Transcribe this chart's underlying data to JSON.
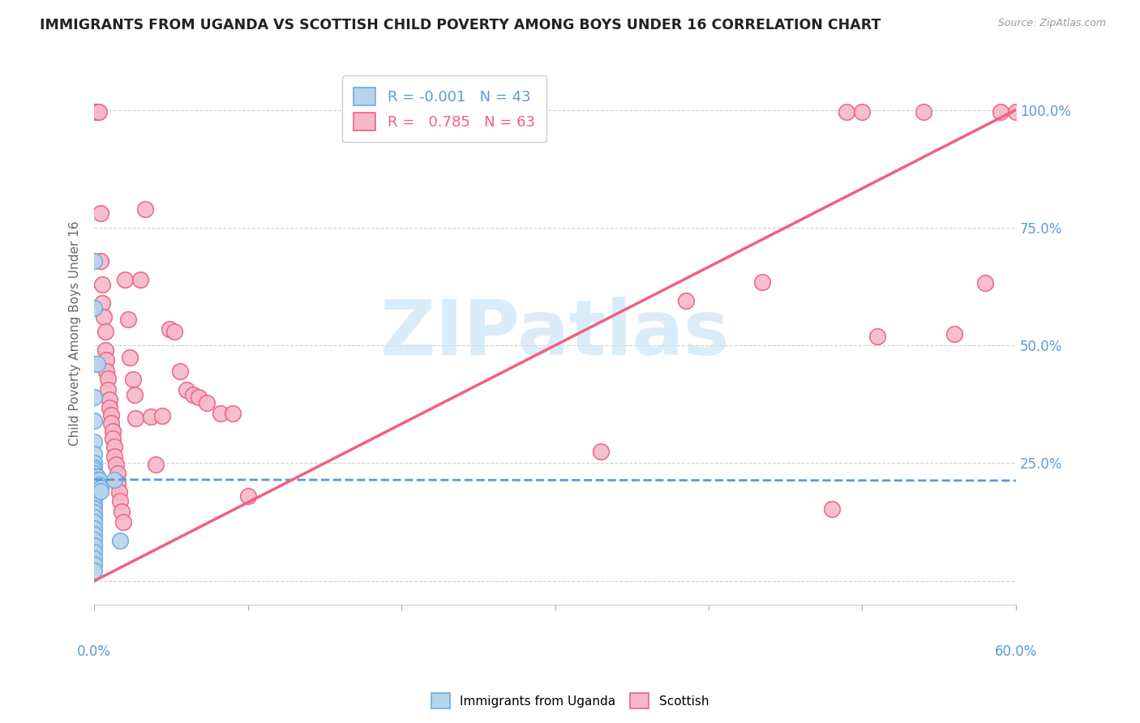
{
  "title": "IMMIGRANTS FROM UGANDA VS SCOTTISH CHILD POVERTY AMONG BOYS UNDER 16 CORRELATION CHART",
  "source": "Source: ZipAtlas.com",
  "ylabel": "Child Poverty Among Boys Under 16",
  "legend_blue_r": "-0.001",
  "legend_blue_n": "43",
  "legend_pink_r": "0.785",
  "legend_pink_n": "63",
  "blue_color": "#b8d4ec",
  "pink_color": "#f5b8c8",
  "blue_edge_color": "#6aace0",
  "pink_edge_color": "#f06080",
  "blue_line_color": "#5b9bd5",
  "pink_line_color": "#f06080",
  "blue_scatter": [
    [
      0.0,
      0.68
    ],
    [
      0.0,
      0.58
    ],
    [
      0.0,
      0.46
    ],
    [
      0.0,
      0.39
    ],
    [
      0.0,
      0.34
    ],
    [
      0.0,
      0.295
    ],
    [
      0.0,
      0.27
    ],
    [
      0.0,
      0.25
    ],
    [
      0.0,
      0.24
    ],
    [
      0.0,
      0.235
    ],
    [
      0.0,
      0.228
    ],
    [
      0.0,
      0.222
    ],
    [
      0.0,
      0.218
    ],
    [
      0.0,
      0.215
    ],
    [
      0.0,
      0.21
    ],
    [
      0.0,
      0.205
    ],
    [
      0.0,
      0.2
    ],
    [
      0.0,
      0.195
    ],
    [
      0.0,
      0.188
    ],
    [
      0.0,
      0.18
    ],
    [
      0.0,
      0.172
    ],
    [
      0.0,
      0.162
    ],
    [
      0.0,
      0.155
    ],
    [
      0.0,
      0.145
    ],
    [
      0.0,
      0.135
    ],
    [
      0.0,
      0.125
    ],
    [
      0.0,
      0.112
    ],
    [
      0.0,
      0.1
    ],
    [
      0.0,
      0.088
    ],
    [
      0.0,
      0.075
    ],
    [
      0.0,
      0.062
    ],
    [
      0.0,
      0.048
    ],
    [
      0.0,
      0.035
    ],
    [
      0.0,
      0.022
    ],
    [
      0.002,
      0.46
    ],
    [
      0.002,
      0.222
    ],
    [
      0.002,
      0.215
    ],
    [
      0.003,
      0.215
    ],
    [
      0.003,
      0.205
    ],
    [
      0.004,
      0.198
    ],
    [
      0.004,
      0.19
    ],
    [
      0.017,
      0.085
    ],
    [
      0.013,
      0.215
    ]
  ],
  "pink_scatter": [
    [
      0.0,
      0.995
    ],
    [
      0.001,
      0.995
    ],
    [
      0.002,
      0.995
    ],
    [
      0.003,
      0.995
    ],
    [
      0.004,
      0.78
    ],
    [
      0.004,
      0.68
    ],
    [
      0.005,
      0.63
    ],
    [
      0.005,
      0.59
    ],
    [
      0.006,
      0.56
    ],
    [
      0.007,
      0.53
    ],
    [
      0.007,
      0.49
    ],
    [
      0.008,
      0.47
    ],
    [
      0.008,
      0.445
    ],
    [
      0.009,
      0.43
    ],
    [
      0.009,
      0.405
    ],
    [
      0.01,
      0.385
    ],
    [
      0.01,
      0.368
    ],
    [
      0.011,
      0.352
    ],
    [
      0.011,
      0.335
    ],
    [
      0.012,
      0.318
    ],
    [
      0.012,
      0.302
    ],
    [
      0.013,
      0.285
    ],
    [
      0.013,
      0.265
    ],
    [
      0.014,
      0.248
    ],
    [
      0.015,
      0.228
    ],
    [
      0.015,
      0.208
    ],
    [
      0.016,
      0.188
    ],
    [
      0.017,
      0.17
    ],
    [
      0.018,
      0.148
    ],
    [
      0.019,
      0.125
    ],
    [
      0.02,
      0.64
    ],
    [
      0.022,
      0.555
    ],
    [
      0.023,
      0.475
    ],
    [
      0.025,
      0.428
    ],
    [
      0.026,
      0.395
    ],
    [
      0.027,
      0.345
    ],
    [
      0.03,
      0.64
    ],
    [
      0.033,
      0.79
    ],
    [
      0.037,
      0.348
    ],
    [
      0.04,
      0.248
    ],
    [
      0.044,
      0.35
    ],
    [
      0.049,
      0.535
    ],
    [
      0.052,
      0.53
    ],
    [
      0.056,
      0.445
    ],
    [
      0.06,
      0.405
    ],
    [
      0.064,
      0.395
    ],
    [
      0.068,
      0.39
    ],
    [
      0.073,
      0.378
    ],
    [
      0.082,
      0.355
    ],
    [
      0.09,
      0.355
    ],
    [
      0.1,
      0.18
    ],
    [
      0.33,
      0.275
    ],
    [
      0.385,
      0.595
    ],
    [
      0.435,
      0.635
    ],
    [
      0.48,
      0.152
    ],
    [
      0.49,
      0.995
    ],
    [
      0.5,
      0.995
    ],
    [
      0.51,
      0.52
    ],
    [
      0.54,
      0.995
    ],
    [
      0.56,
      0.525
    ],
    [
      0.58,
      0.632
    ],
    [
      0.59,
      0.995
    ],
    [
      0.6,
      0.995
    ]
  ],
  "blue_trend_x": [
    0.0,
    0.6
  ],
  "blue_trend_y": [
    0.215,
    0.213
  ],
  "pink_trend_x": [
    0.0,
    0.6
  ],
  "pink_trend_y": [
    0.0,
    1.0
  ],
  "xlim": [
    0.0,
    0.6
  ],
  "ylim": [
    -0.05,
    1.1
  ],
  "yticks": [
    0.0,
    0.25,
    0.5,
    0.75,
    1.0
  ],
  "ytick_labels_right": [
    "",
    "25.0%",
    "50.0%",
    "75.0%",
    "100.0%"
  ],
  "xtick_positions": [
    0.0,
    0.1,
    0.2,
    0.3,
    0.4,
    0.5,
    0.6
  ],
  "watermark_text": "ZIPatlas",
  "watermark_color": "#cce4f7",
  "grid_color": "#d0d0d0",
  "bg_color": "#ffffff",
  "title_color": "#222222",
  "source_color": "#999999",
  "axis_label_color": "#5b9bd5",
  "ylabel_color": "#666666"
}
